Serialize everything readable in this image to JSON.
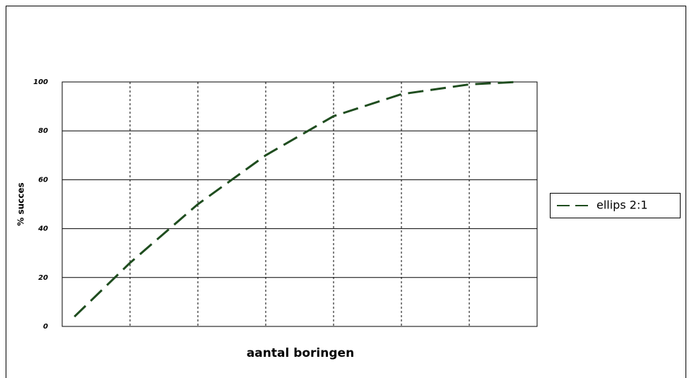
{
  "chart_data": {
    "type": "line",
    "y_label": "% succes",
    "x_label": "aantal boringen",
    "x": [
      0.18,
      1,
      2,
      3,
      4,
      5,
      6,
      6.7
    ],
    "series": [
      {
        "name": "ellips 2:1",
        "color": "#1f4d1f",
        "values": [
          4,
          26,
          50,
          70,
          86,
          95,
          99,
          100
        ]
      }
    ],
    "xlim": [
      0,
      7
    ],
    "xticks": [
      1,
      2,
      3,
      4,
      5,
      6
    ],
    "ylim": [
      0,
      100
    ],
    "yticks": [
      0,
      20,
      40,
      60,
      80,
      100
    ],
    "grid": true,
    "legend": "right"
  }
}
